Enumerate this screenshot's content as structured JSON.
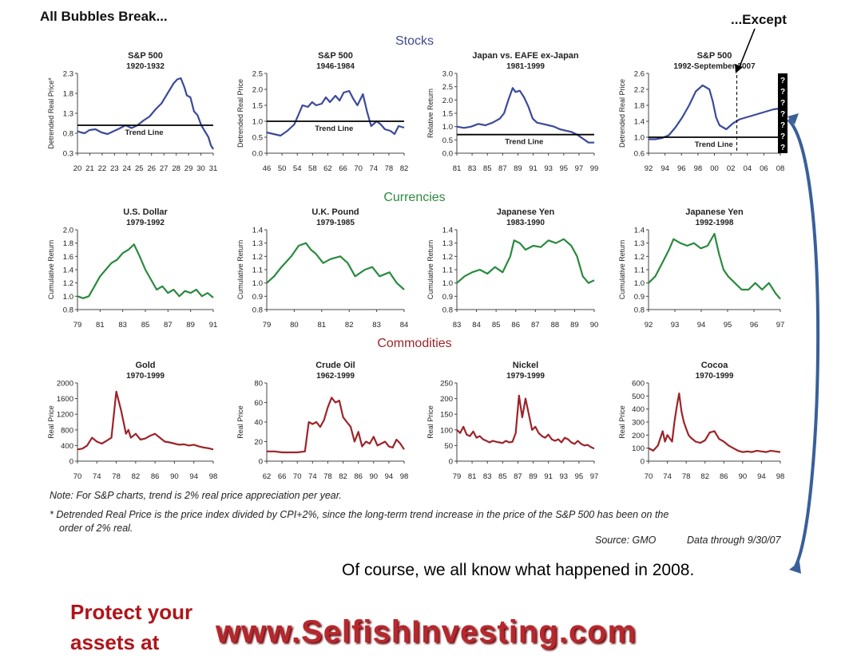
{
  "page": {
    "title": "All Bubbles Break...",
    "except_label": "...Except",
    "sections": {
      "stocks": "Stocks",
      "currencies": "Currencies",
      "commodities": "Commodities"
    },
    "notes": {
      "note1": "Note:  For S&P charts, trend is 2% real price appreciation per year.",
      "note2a": "* Detrended Real Price is the price index divided by CPI+2%, since the long-term trend increase in the price of the S&P 500 has been on the",
      "note2b": "order of 2% real.",
      "source": "Source:  GMO",
      "data_through": "Data through 9/30/07"
    },
    "caption": "Of course, we all know what happened in 2008.",
    "protect_line1": "Protect your",
    "protect_line2": "assets at",
    "website": "www.SelfishInvesting.com"
  },
  "chart_data": [
    {
      "type": "line",
      "title": "S&P 500",
      "subtitle": "1920-1932",
      "ylabel": "Detrended Real Price*",
      "color": "#3b4a9a",
      "ylim": [
        0.3,
        2.3
      ],
      "yticks": [
        "0.3",
        "0.8",
        "1.3",
        "1.8",
        "2.3"
      ],
      "xticks": [
        "20",
        "21",
        "22",
        "23",
        "24",
        "25",
        "26",
        "27",
        "28",
        "29",
        "30",
        "31"
      ],
      "trend": {
        "label": "Trend Line",
        "y": 1.0
      },
      "x": [
        0,
        0.3,
        0.6,
        1,
        1.5,
        2,
        2.5,
        3,
        3.5,
        4,
        4.5,
        5,
        5.5,
        6,
        6.5,
        7,
        7.5,
        8,
        8.3,
        8.6,
        8.9,
        9.1,
        9.4,
        9.7,
        10,
        10.3,
        10.6,
        10.9,
        11.1,
        11.3
      ],
      "y": [
        0.85,
        0.82,
        0.8,
        0.88,
        0.9,
        0.82,
        0.78,
        0.85,
        0.92,
        1.0,
        0.93,
        1.0,
        1.12,
        1.22,
        1.4,
        1.55,
        1.8,
        2.05,
        2.15,
        2.18,
        1.95,
        1.75,
        1.7,
        1.35,
        1.25,
        1.0,
        0.85,
        0.7,
        0.5,
        0.4
      ]
    },
    {
      "type": "line",
      "title": "S&P 500",
      "subtitle": "1946-1984",
      "ylabel": "Detrended Real Price",
      "color": "#3b4a9a",
      "ylim": [
        0.0,
        2.5
      ],
      "yticks": [
        "0.0",
        "0.5",
        "1.0",
        "1.5",
        "2.0",
        "2.5"
      ],
      "xticks": [
        "46",
        "50",
        "54",
        "58",
        "62",
        "66",
        "70",
        "74",
        "78",
        "82"
      ],
      "trend": {
        "label": "Trend Line",
        "y": 1.0
      },
      "x": [
        0,
        0.5,
        1,
        1.5,
        2,
        2.3,
        2.6,
        3,
        3.3,
        3.6,
        4,
        4.3,
        4.6,
        5,
        5.3,
        5.6,
        6,
        6.3,
        6.6,
        7,
        7.3,
        7.6,
        8,
        8.3,
        8.6,
        9,
        9.3,
        9.6,
        10
      ],
      "y": [
        0.65,
        0.6,
        0.55,
        0.7,
        0.9,
        1.2,
        1.5,
        1.45,
        1.6,
        1.5,
        1.55,
        1.75,
        1.6,
        1.8,
        1.65,
        1.9,
        1.95,
        1.7,
        1.5,
        1.85,
        1.3,
        0.85,
        1.0,
        0.9,
        0.75,
        0.7,
        0.6,
        0.85,
        0.8
      ]
    },
    {
      "type": "line",
      "title": "Japan vs. EAFE ex-Japan",
      "subtitle": "1981-1999",
      "ylabel": "Relative Return",
      "color": "#3b4a9a",
      "ylim": [
        0.0,
        3.0
      ],
      "yticks": [
        "0.0",
        "0.5",
        "1.0",
        "1.5",
        "2.0",
        "2.5",
        "3.0"
      ],
      "xticks": [
        "81",
        "83",
        "85",
        "87",
        "89",
        "91",
        "93",
        "95",
        "97",
        "99"
      ],
      "trend": {
        "label": "Trend Line",
        "y": 0.7
      },
      "x": [
        0,
        0.5,
        1,
        1.5,
        2,
        2.5,
        3,
        3.3,
        3.6,
        3.9,
        4.1,
        4.4,
        4.7,
        5,
        5.3,
        5.6,
        6,
        6.4,
        6.8,
        7.2,
        7.6,
        8,
        8.4,
        8.8,
        9.2,
        9.6
      ],
      "y": [
        1.0,
        0.95,
        1.0,
        1.1,
        1.05,
        1.15,
        1.3,
        1.5,
        2.0,
        2.45,
        2.3,
        2.35,
        2.1,
        1.75,
        1.3,
        1.15,
        1.1,
        1.05,
        1.0,
        0.9,
        0.85,
        0.8,
        0.7,
        0.55,
        0.4,
        0.4
      ]
    },
    {
      "type": "line",
      "title": "S&P 500",
      "subtitle": "1992-September 2007",
      "ylabel": "Detrended Real Price",
      "color": "#3b4a9a",
      "ylim": [
        0.6,
        2.6
      ],
      "yticks": [
        "0.6",
        "1.0",
        "1.4",
        "1.8",
        "2.2",
        "2.6"
      ],
      "xticks": [
        "92",
        "94",
        "96",
        "98",
        "00",
        "02",
        "04",
        "06",
        "08"
      ],
      "trend": {
        "label": "Trend Line",
        "y": 1.0
      },
      "x": [
        0,
        0.4,
        0.8,
        1.2,
        1.6,
        2,
        2.4,
        2.8,
        3.2,
        3.6,
        3.8,
        4,
        4.2,
        4.6,
        5,
        5.4,
        5.8,
        6.2,
        6.6,
        7,
        7.4,
        7.8
      ],
      "y": [
        0.95,
        0.95,
        0.98,
        1.05,
        1.25,
        1.5,
        1.8,
        2.15,
        2.3,
        2.2,
        1.9,
        1.5,
        1.3,
        1.2,
        1.35,
        1.45,
        1.5,
        1.55,
        1.6,
        1.65,
        1.7,
        1.72
      ]
    },
    {
      "type": "line",
      "title": "U.S. Dollar",
      "subtitle": "1979-1992",
      "ylabel": "Cumulative Return",
      "color": "#2a8a3e",
      "ylim": [
        0.8,
        2.0
      ],
      "yticks": [
        "0.8",
        "1.0",
        "1.2",
        "1.4",
        "1.6",
        "1.8",
        "2.0"
      ],
      "xticks": [
        "79",
        "81",
        "83",
        "85",
        "87",
        "89",
        "91"
      ],
      "x": [
        0,
        0.5,
        1,
        1.5,
        2,
        2.5,
        3,
        3.5,
        4,
        4.5,
        5,
        5.5,
        6,
        6.5,
        7,
        7.5,
        8,
        8.5,
        9,
        9.5,
        10,
        10.5,
        11,
        11.5,
        12
      ],
      "y": [
        1.0,
        0.97,
        1.0,
        1.15,
        1.3,
        1.4,
        1.5,
        1.55,
        1.65,
        1.7,
        1.78,
        1.6,
        1.4,
        1.25,
        1.1,
        1.15,
        1.05,
        1.1,
        1.0,
        1.08,
        1.05,
        1.1,
        1.0,
        1.05,
        0.98
      ]
    },
    {
      "type": "line",
      "title": "U.K. Pound",
      "subtitle": "1979-1985",
      "ylabel": "Cumulative Return",
      "color": "#2a8a3e",
      "ylim": [
        0.8,
        1.4
      ],
      "yticks": [
        "0.8",
        "0.9",
        "1.0",
        "1.1",
        "1.2",
        "1.3",
        "1.4"
      ],
      "xticks": [
        "79",
        "80",
        "81",
        "82",
        "83",
        "84"
      ],
      "x": [
        0,
        0.3,
        0.6,
        1,
        1.3,
        1.6,
        1.8,
        2,
        2.3,
        2.6,
        3,
        3.3,
        3.6,
        4,
        4.3,
        4.6,
        5,
        5.3,
        5.6
      ],
      "y": [
        1.0,
        1.05,
        1.12,
        1.2,
        1.28,
        1.3,
        1.25,
        1.22,
        1.15,
        1.18,
        1.2,
        1.15,
        1.05,
        1.1,
        1.12,
        1.05,
        1.08,
        1.0,
        0.95
      ]
    },
    {
      "type": "line",
      "title": "Japanese Yen",
      "subtitle": "1983-1990",
      "ylabel": "Cumulative Return",
      "color": "#2a8a3e",
      "ylim": [
        0.8,
        1.4
      ],
      "yticks": [
        "0.8",
        "0.9",
        "1.0",
        "1.1",
        "1.2",
        "1.3",
        "1.4"
      ],
      "xticks": [
        "83",
        "84",
        "85",
        "86",
        "87",
        "88",
        "89",
        "90"
      ],
      "x": [
        0,
        0.4,
        0.8,
        1.2,
        1.6,
        2,
        2.4,
        2.8,
        3,
        3.3,
        3.6,
        4,
        4.4,
        4.8,
        5.2,
        5.6,
        6,
        6.3,
        6.6,
        6.9,
        7.2
      ],
      "y": [
        1.0,
        1.05,
        1.08,
        1.1,
        1.07,
        1.12,
        1.08,
        1.2,
        1.32,
        1.3,
        1.25,
        1.28,
        1.27,
        1.32,
        1.3,
        1.33,
        1.28,
        1.2,
        1.05,
        1.0,
        1.02
      ]
    },
    {
      "type": "line",
      "title": "Japanese Yen",
      "subtitle": "1992-1998",
      "ylabel": "Cumulative Return",
      "color": "#2a8a3e",
      "ylim": [
        0.8,
        1.4
      ],
      "yticks": [
        "0.8",
        "0.9",
        "1.0",
        "1.1",
        "1.2",
        "1.3",
        "1.4"
      ],
      "xticks": [
        "92",
        "93",
        "94",
        "95",
        "96",
        "97"
      ],
      "x": [
        0,
        0.3,
        0.6,
        0.9,
        1.1,
        1.4,
        1.7,
        2,
        2.3,
        2.6,
        2.9,
        3.1,
        3.3,
        3.5,
        3.8,
        4.1,
        4.4,
        4.7,
        5,
        5.3,
        5.6,
        5.8
      ],
      "y": [
        1.0,
        1.05,
        1.15,
        1.25,
        1.33,
        1.3,
        1.28,
        1.3,
        1.26,
        1.28,
        1.37,
        1.22,
        1.1,
        1.05,
        1.0,
        0.95,
        0.95,
        1.0,
        0.95,
        1.0,
        0.92,
        0.88
      ]
    },
    {
      "type": "line",
      "title": "Gold",
      "subtitle": "1970-1999",
      "ylabel": "Real Price",
      "color": "#9c2429",
      "ylim": [
        0,
        2000
      ],
      "yticks": [
        "0",
        "400",
        "800",
        "1200",
        "1600",
        "2000"
      ],
      "xticks": [
        "70",
        "74",
        "78",
        "82",
        "86",
        "90",
        "94",
        "98"
      ],
      "x": [
        0,
        1,
        2,
        3,
        4,
        5,
        6,
        7,
        8,
        9,
        9.5,
        10,
        10.5,
        11,
        12,
        13,
        14,
        15,
        16,
        17,
        18,
        19,
        20,
        21,
        22,
        23,
        24,
        25,
        26,
        27,
        28
      ],
      "y": [
        300,
        320,
        400,
        600,
        500,
        450,
        520,
        600,
        1780,
        1300,
        1000,
        700,
        800,
        600,
        700,
        550,
        580,
        650,
        700,
        600,
        500,
        480,
        450,
        420,
        430,
        400,
        420,
        380,
        350,
        330,
        300
      ]
    },
    {
      "type": "line",
      "title": "Crude Oil",
      "subtitle": "1962-1999",
      "ylabel": "Real Price",
      "color": "#9c2429",
      "ylim": [
        0,
        80
      ],
      "yticks": [
        "0",
        "20",
        "40",
        "60",
        "80"
      ],
      "xticks": [
        "62",
        "66",
        "70",
        "74",
        "78",
        "82",
        "86",
        "90",
        "94",
        "98"
      ],
      "x": [
        0,
        2,
        4,
        6,
        8,
        10,
        11,
        12,
        13,
        14,
        15,
        16,
        17,
        18,
        19,
        20,
        21,
        22,
        23,
        24,
        25,
        26,
        27,
        28,
        29,
        30,
        31,
        32,
        33,
        34,
        35,
        36
      ],
      "y": [
        10,
        10,
        9,
        9,
        9,
        10,
        40,
        38,
        40,
        35,
        42,
        55,
        65,
        60,
        62,
        45,
        40,
        35,
        20,
        30,
        15,
        20,
        18,
        25,
        16,
        18,
        20,
        15,
        14,
        22,
        18,
        12
      ]
    },
    {
      "type": "line",
      "title": "Nickel",
      "subtitle": "1979-1999",
      "ylabel": "Real Price",
      "color": "#9c2429",
      "ylim": [
        0,
        250
      ],
      "yticks": [
        "0",
        "50",
        "100",
        "150",
        "200",
        "250"
      ],
      "xticks": [
        "79",
        "81",
        "83",
        "85",
        "87",
        "89",
        "91",
        "93",
        "95",
        "97"
      ],
      "x": [
        0,
        0.5,
        1,
        1.5,
        2,
        2.5,
        3,
        3.5,
        4,
        4.5,
        5,
        5.5,
        6,
        6.5,
        7,
        7.5,
        8,
        8.5,
        9,
        9.5,
        10,
        10.5,
        11,
        11.5,
        12,
        12.5,
        13,
        13.5,
        14,
        14.5,
        15,
        15.5,
        16,
        16.5,
        17,
        17.5,
        18,
        18.5,
        19,
        19.5,
        20,
        20.5,
        21
      ],
      "y": [
        100,
        90,
        110,
        85,
        80,
        95,
        75,
        80,
        70,
        65,
        60,
        65,
        62,
        60,
        58,
        65,
        60,
        62,
        90,
        210,
        140,
        200,
        150,
        100,
        110,
        90,
        80,
        75,
        85,
        70,
        65,
        70,
        60,
        75,
        70,
        60,
        55,
        65,
        55,
        50,
        52,
        45,
        40
      ]
    },
    {
      "type": "line",
      "title": "Cocoa",
      "subtitle": "1970-1999",
      "ylabel": "Real Price",
      "color": "#9c2429",
      "ylim": [
        0,
        600
      ],
      "yticks": [
        "0",
        "100",
        "200",
        "300",
        "400",
        "500",
        "600"
      ],
      "xticks": [
        "70",
        "74",
        "78",
        "82",
        "86",
        "90",
        "94",
        "98"
      ],
      "x": [
        0,
        1,
        2,
        3,
        3.5,
        4,
        5,
        5.5,
        6,
        6.5,
        7,
        7.5,
        8,
        8.5,
        9,
        10,
        11,
        12,
        13,
        14,
        15,
        16,
        17,
        18,
        19,
        20,
        21,
        22,
        23,
        24,
        25,
        26,
        27,
        28
      ],
      "y": [
        100,
        80,
        120,
        230,
        150,
        200,
        150,
        300,
        420,
        520,
        380,
        300,
        250,
        200,
        180,
        150,
        140,
        160,
        220,
        230,
        170,
        150,
        120,
        100,
        80,
        70,
        75,
        70,
        80,
        75,
        70,
        80,
        75,
        70
      ]
    }
  ]
}
